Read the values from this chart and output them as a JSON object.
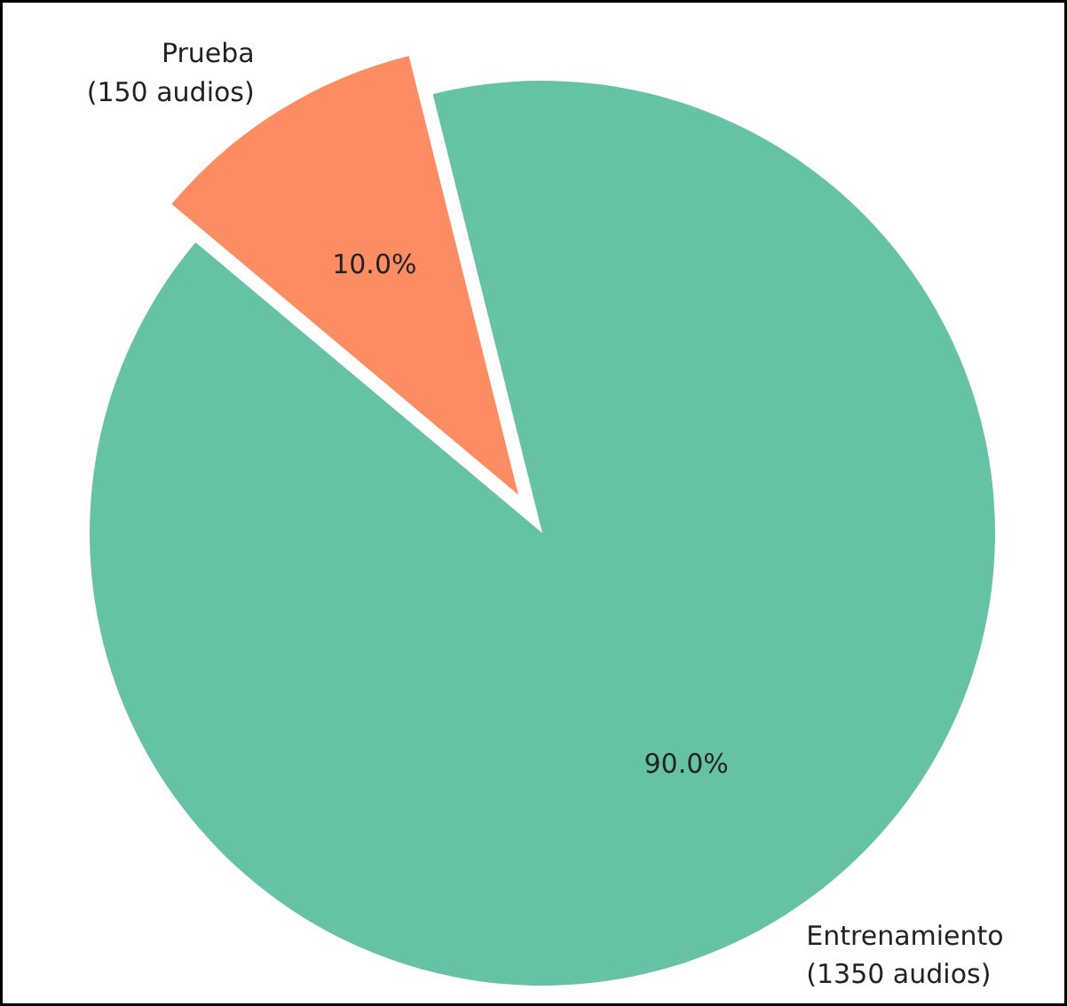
{
  "chart_data": {
    "type": "pie",
    "categories": [
      "Entrenamiento\n(1350 audios)",
      "Prueba\n(150 audios)"
    ],
    "values": [
      90.0,
      10.0
    ],
    "colors": [
      "#66c2a5",
      "#fc8d62"
    ],
    "value_labels": [
      "90.0%",
      "10.0%"
    ]
  }
}
